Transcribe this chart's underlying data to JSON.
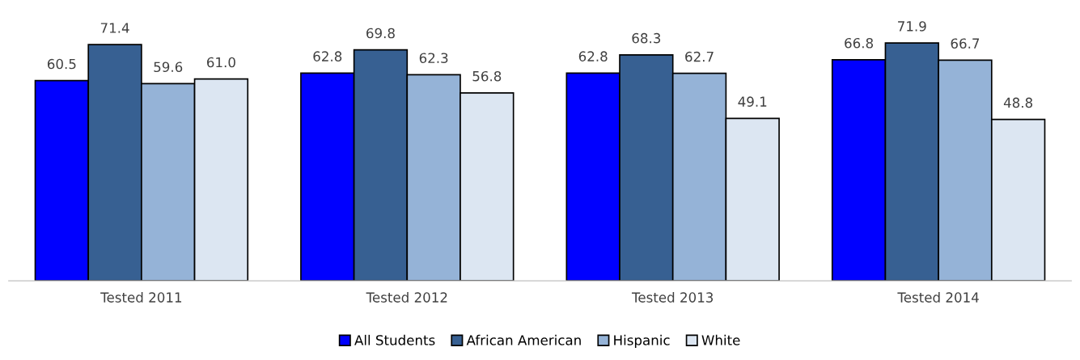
{
  "chart_data": {
    "type": "bar",
    "categories": [
      "Tested 2011",
      "Tested 2012",
      "Tested 2013",
      "Tested 2014"
    ],
    "series": [
      {
        "name": "All Students",
        "color": "#0000ff",
        "values": [
          60.5,
          62.8,
          62.8,
          66.8
        ],
        "value_labels": [
          "60.5",
          "62.8",
          "62.8",
          "66.8"
        ]
      },
      {
        "name": "African American",
        "color": "#376092",
        "values": [
          71.4,
          69.8,
          68.3,
          71.9
        ],
        "value_labels": [
          "71.4",
          "69.8",
          "68.3",
          "71.9"
        ]
      },
      {
        "name": "Hispanic",
        "color": "#95b3d7",
        "values": [
          59.6,
          62.3,
          62.7,
          66.7
        ],
        "value_labels": [
          "59.6",
          "62.3",
          "62.7",
          "66.7"
        ]
      },
      {
        "name": "White",
        "color": "#dce6f2",
        "values": [
          61.0,
          56.8,
          49.1,
          48.8
        ],
        "value_labels": [
          "61.0",
          "56.8",
          "49.1",
          "48.8"
        ]
      }
    ],
    "legend": "bottom"
  }
}
